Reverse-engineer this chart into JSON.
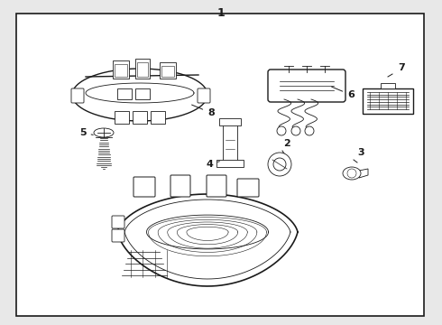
{
  "bg_color": "#e8e8e8",
  "box_color": "#ffffff",
  "line_color": "#1a1a1a",
  "fig_width": 4.9,
  "fig_height": 3.6,
  "dpi": 100
}
